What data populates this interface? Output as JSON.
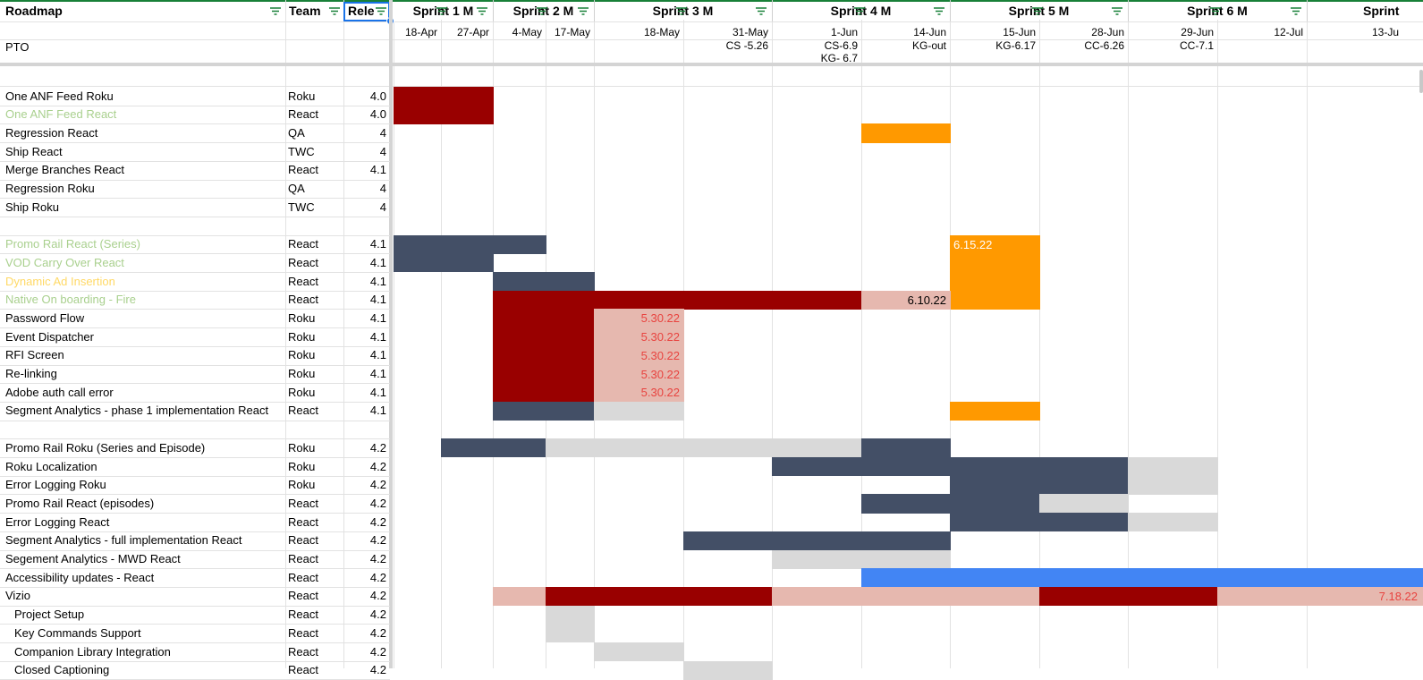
{
  "header": {
    "roadmap": "Roadmap",
    "team": "Team",
    "release": "Rele",
    "sprints": [
      "Sprint 1 M",
      "Sprint 2 M",
      "Sprint 3 M",
      "Sprint 4 M",
      "Sprint 5 M",
      "Sprint 6 M",
      "Sprint"
    ]
  },
  "dates": [
    "18-Apr",
    "27-Apr",
    "4-May",
    "17-May",
    "18-May",
    "31-May",
    "1-Jun",
    "14-Jun",
    "15-Jun",
    "28-Jun",
    "29-Jun",
    "12-Jul",
    "13-Ju"
  ],
  "pto": {
    "label": "PTO",
    "notes": [
      {
        "col": 5,
        "text": "CS -5.26"
      },
      {
        "col": 6,
        "text": "CS-6.9"
      },
      {
        "col": 6,
        "text": "KG- 6.7",
        "line": 2
      },
      {
        "col": 7,
        "text": "KG-out"
      },
      {
        "col": 8,
        "text": "KG-6.17"
      },
      {
        "col": 9,
        "text": "CC-6.26"
      },
      {
        "col": 10,
        "text": "CC-7.1"
      }
    ]
  },
  "colors": {
    "dark_red": "#990000",
    "navy": "#434f66",
    "orange": "#ff9900",
    "pink": "#e6b8af",
    "light_gray": "#d9d9d9",
    "blue": "#4285f4",
    "green_text": "#a9d08e",
    "yellow_text": "#ffd966",
    "red_text": "#e8433f",
    "accent": "#1a73e8"
  },
  "rows": [
    {
      "name": "One ANF Feed Roku",
      "team": "Roku",
      "rel": "4.0"
    },
    {
      "name": "One ANF Feed React",
      "team": "React",
      "rel": "4.0",
      "style": "green"
    },
    {
      "name": "Regression React",
      "team": "QA",
      "rel": "4"
    },
    {
      "name": "Ship React",
      "team": "TWC",
      "rel": "4"
    },
    {
      "name": "Merge Branches React",
      "team": "React",
      "rel": "4.1"
    },
    {
      "name": "Regression Roku",
      "team": "QA",
      "rel": "4"
    },
    {
      "name": "Ship Roku",
      "team": "TWC",
      "rel": "4"
    },
    {
      "name": "",
      "team": "",
      "rel": ""
    },
    {
      "name": "Promo Rail React (Series)",
      "team": "React",
      "rel": "4.1",
      "style": "green"
    },
    {
      "name": "VOD Carry Over React",
      "team": "React",
      "rel": "4.1",
      "style": "green"
    },
    {
      "name": "Dynamic Ad Insertion",
      "team": "React",
      "rel": "4.1",
      "style": "yellow"
    },
    {
      "name": "Native On boarding - Fire",
      "team": "React",
      "rel": "4.1",
      "style": "green"
    },
    {
      "name": "Password Flow",
      "team": "Roku",
      "rel": "4.1"
    },
    {
      "name": "Event Dispatcher",
      "team": "Roku",
      "rel": "4.1"
    },
    {
      "name": "RFI Screen",
      "team": "Roku",
      "rel": "4.1"
    },
    {
      "name": "Re-linking",
      "team": "Roku",
      "rel": "4.1"
    },
    {
      "name": "Adobe auth call error",
      "team": "Roku",
      "rel": "4.1"
    },
    {
      "name": "Segment Analytics - phase 1 implementation React",
      "team": "React",
      "rel": "4.1"
    },
    {
      "name": "",
      "team": "",
      "rel": ""
    },
    {
      "name": "Promo Rail Roku (Series and Episode)",
      "team": "Roku",
      "rel": "4.2"
    },
    {
      "name": "Roku Localization",
      "team": "Roku",
      "rel": "4.2"
    },
    {
      "name": "Error Logging Roku",
      "team": "Roku",
      "rel": "4.2"
    },
    {
      "name": "Promo Rail React (episodes)",
      "team": "React",
      "rel": "4.2"
    },
    {
      "name": "Error Logging React",
      "team": "React",
      "rel": "4.2"
    },
    {
      "name": "Segment Analytics - full implementation React",
      "team": "React",
      "rel": "4.2"
    },
    {
      "name": "Segement Analytics - MWD React",
      "team": "React",
      "rel": "4.2"
    },
    {
      "name": "Accessibility updates - React",
      "team": "React",
      "rel": "4.2"
    },
    {
      "name": "Vizio",
      "team": "React",
      "rel": "4.2"
    },
    {
      "name": "Project Setup",
      "team": "React",
      "rel": "4.2",
      "indent": true
    },
    {
      "name": "Key Commands Support",
      "team": "React",
      "rel": "4.2",
      "indent": true
    },
    {
      "name": "Companion Library Integration",
      "team": "React",
      "rel": "4.2",
      "indent": true
    },
    {
      "name": "Closed Captioning",
      "team": "React",
      "rel": "4.2",
      "indent": true
    }
  ],
  "bars": [
    {
      "row": 0,
      "from": 0,
      "to": 2,
      "color": "dark_red"
    },
    {
      "row": 1,
      "from": 0,
      "to": 2,
      "color": "dark_red"
    },
    {
      "row": 2,
      "from": 7,
      "to": 8,
      "color": "orange"
    },
    {
      "row": 8,
      "from": 0,
      "to": 3,
      "color": "navy"
    },
    {
      "row": 9,
      "from": 0,
      "to": 2,
      "color": "navy"
    },
    {
      "row": 8,
      "from": 8,
      "to": 9,
      "color": "orange",
      "label": "6.15.22",
      "label_color": "#ffffff",
      "label_align": "left"
    },
    {
      "row": 9,
      "from": 8,
      "to": 9,
      "color": "orange"
    },
    {
      "row": 10,
      "from": 8,
      "to": 9,
      "color": "orange"
    },
    {
      "row": 11,
      "from": 8,
      "to": 9,
      "color": "orange"
    },
    {
      "row": 10,
      "from": 2,
      "to": 4,
      "color": "navy"
    },
    {
      "row": 11,
      "from": 2,
      "to": 7,
      "color": "dark_red"
    },
    {
      "row": 11,
      "from": 7,
      "to": 8,
      "color": "pink",
      "label": "6.10.22",
      "label_color": "#000000"
    },
    {
      "row": 12,
      "from": 2,
      "to": 4,
      "color": "dark_red"
    },
    {
      "row": 12,
      "from": 4,
      "to": 5,
      "color": "pink",
      "label": "5.30.22",
      "label_color": "#e8433f"
    },
    {
      "row": 13,
      "from": 2,
      "to": 4,
      "color": "dark_red"
    },
    {
      "row": 13,
      "from": 4,
      "to": 5,
      "color": "pink",
      "label": "5.30.22",
      "label_color": "#e8433f"
    },
    {
      "row": 14,
      "from": 2,
      "to": 4,
      "color": "dark_red"
    },
    {
      "row": 14,
      "from": 4,
      "to": 5,
      "color": "pink",
      "label": "5.30.22",
      "label_color": "#e8433f"
    },
    {
      "row": 15,
      "from": 2,
      "to": 4,
      "color": "dark_red"
    },
    {
      "row": 15,
      "from": 4,
      "to": 5,
      "color": "pink",
      "label": "5.30.22",
      "label_color": "#e8433f"
    },
    {
      "row": 16,
      "from": 2,
      "to": 4,
      "color": "dark_red"
    },
    {
      "row": 16,
      "from": 4,
      "to": 5,
      "color": "pink",
      "label": "5.30.22",
      "label_color": "#e8433f"
    },
    {
      "row": 17,
      "from": 2,
      "to": 4,
      "color": "navy"
    },
    {
      "row": 17,
      "from": 4,
      "to": 5,
      "color": "light_gray"
    },
    {
      "row": 17,
      "from": 8,
      "to": 9,
      "color": "orange"
    },
    {
      "row": 19,
      "from": 1,
      "to": 3,
      "color": "navy"
    },
    {
      "row": 19,
      "from": 3,
      "to": 7,
      "color": "light_gray"
    },
    {
      "row": 19,
      "from": 7,
      "to": 8,
      "color": "navy"
    },
    {
      "row": 20,
      "from": 6,
      "to": 10,
      "color": "navy"
    },
    {
      "row": 20,
      "from": 10,
      "to": 11,
      "color": "light_gray"
    },
    {
      "row": 21,
      "from": 8,
      "to": 10,
      "color": "navy"
    },
    {
      "row": 21,
      "from": 10,
      "to": 11,
      "color": "light_gray"
    },
    {
      "row": 22,
      "from": 7,
      "to": 9,
      "color": "navy"
    },
    {
      "row": 22,
      "from": 9,
      "to": 10,
      "color": "light_gray"
    },
    {
      "row": 23,
      "from": 8,
      "to": 10,
      "color": "navy"
    },
    {
      "row": 23,
      "from": 10,
      "to": 11,
      "color": "light_gray"
    },
    {
      "row": 24,
      "from": 5,
      "to": 8,
      "color": "navy"
    },
    {
      "row": 25,
      "from": 6,
      "to": 8,
      "color": "light_gray"
    },
    {
      "row": 26,
      "from": 7,
      "to": 12,
      "color": "blue"
    },
    {
      "row": 26,
      "from": 12,
      "to": 13,
      "color": "blue"
    },
    {
      "row": 27,
      "from": 2,
      "to": 3,
      "color": "pink"
    },
    {
      "row": 27,
      "from": 3,
      "to": 6,
      "color": "dark_red"
    },
    {
      "row": 27,
      "from": 6,
      "to": 9,
      "color": "pink"
    },
    {
      "row": 27,
      "from": 9,
      "to": 11,
      "color": "dark_red"
    },
    {
      "row": 27,
      "from": 11,
      "to": 12,
      "color": "pink"
    },
    {
      "row": 27,
      "from": 12,
      "to": 13,
      "color": "pink",
      "label": "7.18.22",
      "label_color": "#e8433f"
    },
    {
      "row": 28,
      "from": 3,
      "to": 4,
      "color": "light_gray"
    },
    {
      "row": 29,
      "from": 3,
      "to": 4,
      "color": "light_gray"
    },
    {
      "row": 30,
      "from": 4,
      "to": 5,
      "color": "light_gray"
    },
    {
      "row": 31,
      "from": 5,
      "to": 6,
      "color": "light_gray"
    }
  ]
}
